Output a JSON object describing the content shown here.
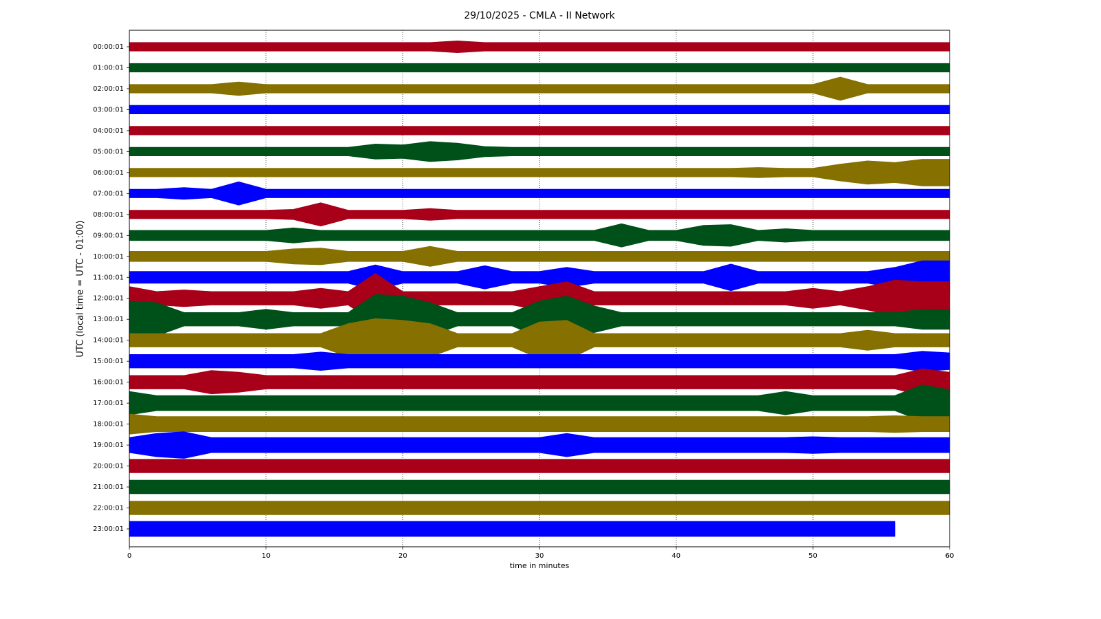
{
  "chart_data": {
    "type": "helicorder",
    "title": "29/10/2025 - CMLA - II Network",
    "xlabel": "time in minutes",
    "ylabel": "UTC (local time = UTC - 01:00)",
    "xlim": [
      0,
      60
    ],
    "xticks": [
      0,
      10,
      20,
      30,
      40,
      50,
      60
    ],
    "grid": true,
    "x": [
      0,
      2,
      4,
      6,
      8,
      10,
      12,
      14,
      16,
      18,
      20,
      22,
      24,
      26,
      28,
      30,
      32,
      34,
      36,
      38,
      40,
      42,
      44,
      46,
      48,
      50,
      52,
      54,
      56,
      58,
      60
    ],
    "series": [
      {
        "name": "00:00:01",
        "color": "#a80018",
        "values": [
          5,
          5,
          5,
          5,
          5,
          5,
          5,
          5,
          5,
          5,
          5,
          5,
          7,
          5,
          5,
          5,
          5,
          5,
          5,
          5,
          5,
          5,
          5,
          5,
          5,
          5,
          5,
          5,
          5,
          5,
          5
        ]
      },
      {
        "name": "01:00:01",
        "color": "#00501a",
        "values": [
          5,
          5,
          5,
          5,
          5,
          5,
          5,
          5,
          5,
          5,
          5,
          5,
          5,
          5,
          5,
          5,
          5,
          5,
          5,
          5,
          5,
          5,
          5,
          5,
          5,
          5,
          5,
          5,
          5,
          5,
          5
        ]
      },
      {
        "name": "02:00:01",
        "color": "#857000",
        "values": [
          5,
          5,
          5,
          5,
          8,
          5,
          5,
          5,
          5,
          5,
          5,
          5,
          5,
          5,
          5,
          5,
          5,
          5,
          5,
          5,
          5,
          5,
          5,
          5,
          5,
          5,
          14,
          5,
          5,
          5,
          5
        ]
      },
      {
        "name": "03:00:01",
        "color": "#0000ff",
        "values": [
          5,
          5,
          5,
          5,
          5,
          5,
          5,
          5,
          5,
          5,
          5,
          5,
          5,
          5,
          5,
          5,
          5,
          5,
          5,
          5,
          5,
          5,
          5,
          5,
          5,
          5,
          5,
          5,
          5,
          5,
          5
        ]
      },
      {
        "name": "04:00:01",
        "color": "#a80018",
        "values": [
          5,
          5,
          5,
          5,
          5,
          5,
          5,
          5,
          5,
          5,
          5,
          5,
          5,
          5,
          5,
          5,
          5,
          5,
          5,
          5,
          5,
          5,
          5,
          5,
          5,
          5,
          5,
          5,
          5,
          5,
          5
        ]
      },
      {
        "name": "05:00:01",
        "color": "#00501a",
        "values": [
          5,
          5,
          5,
          5,
          5,
          5,
          5,
          5,
          5,
          9,
          8,
          12,
          10,
          6,
          5,
          5,
          5,
          5,
          5,
          5,
          5,
          5,
          5,
          5,
          5,
          5,
          5,
          5,
          5,
          5,
          5
        ]
      },
      {
        "name": "06:00:01",
        "color": "#857000",
        "values": [
          5,
          5,
          5,
          5,
          5,
          5,
          5,
          5,
          5,
          5,
          5,
          5,
          5,
          5,
          5,
          5,
          5,
          5,
          5,
          5,
          5,
          5,
          5,
          6,
          5,
          5,
          10,
          14,
          12,
          16,
          16
        ]
      },
      {
        "name": "07:00:01",
        "color": "#0000ff",
        "values": [
          5,
          5,
          7,
          5,
          14,
          5,
          5,
          5,
          5,
          5,
          5,
          5,
          5,
          5,
          5,
          5,
          5,
          5,
          5,
          5,
          5,
          5,
          5,
          5,
          5,
          5,
          5,
          5,
          5,
          5,
          5
        ]
      },
      {
        "name": "08:00:01",
        "color": "#a80018",
        "values": [
          5,
          5,
          5,
          5,
          5,
          5,
          6,
          14,
          5,
          5,
          5,
          7,
          5,
          5,
          5,
          5,
          5,
          5,
          5,
          5,
          5,
          5,
          5,
          5,
          5,
          5,
          5,
          5,
          5,
          5,
          5
        ]
      },
      {
        "name": "09:00:01",
        "color": "#00501a",
        "values": [
          6,
          6,
          6,
          6,
          6,
          6,
          9,
          6,
          6,
          6,
          6,
          6,
          6,
          6,
          6,
          6,
          6,
          6,
          14,
          6,
          6,
          12,
          13,
          6,
          8,
          6,
          6,
          6,
          6,
          6,
          6
        ]
      },
      {
        "name": "10:00:01",
        "color": "#857000",
        "values": [
          6,
          6,
          6,
          6,
          6,
          6,
          9,
          10,
          6,
          6,
          6,
          12,
          6,
          6,
          6,
          6,
          6,
          6,
          6,
          6,
          6,
          6,
          6,
          6,
          6,
          6,
          6,
          6,
          6,
          6,
          6
        ]
      },
      {
        "name": "11:00:01",
        "color": "#0000ff",
        "values": [
          7,
          7,
          7,
          7,
          7,
          7,
          7,
          7,
          7,
          15,
          7,
          7,
          7,
          14,
          7,
          7,
          12,
          7,
          7,
          7,
          7,
          7,
          16,
          7,
          7,
          7,
          7,
          7,
          12,
          20,
          20
        ]
      },
      {
        "name": "12:00:01",
        "color": "#a80018",
        "values": [
          14,
          8,
          10,
          8,
          8,
          8,
          8,
          12,
          8,
          30,
          8,
          8,
          8,
          8,
          8,
          14,
          20,
          8,
          8,
          8,
          8,
          8,
          8,
          8,
          8,
          12,
          8,
          14,
          22,
          20,
          20
        ]
      },
      {
        "name": "13:00:01",
        "color": "#00501a",
        "values": [
          22,
          20,
          8,
          8,
          8,
          12,
          8,
          8,
          8,
          30,
          28,
          20,
          8,
          8,
          8,
          22,
          28,
          16,
          8,
          8,
          8,
          8,
          8,
          8,
          8,
          8,
          8,
          8,
          8,
          12,
          12
        ]
      },
      {
        "name": "14:00:01",
        "color": "#857000",
        "values": [
          8,
          8,
          8,
          8,
          8,
          8,
          8,
          8,
          20,
          26,
          24,
          20,
          8,
          8,
          8,
          22,
          24,
          8,
          8,
          8,
          8,
          8,
          8,
          8,
          8,
          8,
          8,
          12,
          8,
          8,
          8
        ]
      },
      {
        "name": "15:00:01",
        "color": "#0000ff",
        "values": [
          8,
          8,
          8,
          8,
          8,
          8,
          8,
          11,
          8,
          8,
          8,
          8,
          8,
          8,
          8,
          8,
          8,
          8,
          8,
          8,
          8,
          8,
          8,
          8,
          8,
          8,
          8,
          8,
          8,
          12,
          10
        ]
      },
      {
        "name": "16:00:01",
        "color": "#a80018",
        "values": [
          8,
          8,
          8,
          14,
          12,
          8,
          8,
          8,
          8,
          8,
          8,
          8,
          8,
          8,
          8,
          8,
          8,
          8,
          8,
          8,
          8,
          8,
          8,
          8,
          8,
          8,
          8,
          8,
          8,
          16,
          12
        ]
      },
      {
        "name": "17:00:01",
        "color": "#00501a",
        "values": [
          14,
          9,
          9,
          9,
          9,
          9,
          9,
          9,
          9,
          9,
          9,
          9,
          9,
          9,
          9,
          9,
          9,
          9,
          9,
          9,
          9,
          9,
          9,
          9,
          14,
          9,
          9,
          9,
          9,
          22,
          16
        ]
      },
      {
        "name": "18:00:01",
        "color": "#857000",
        "values": [
          12,
          9,
          9,
          9,
          9,
          9,
          9,
          9,
          9,
          9,
          9,
          9,
          9,
          9,
          9,
          9,
          9,
          9,
          9,
          9,
          9,
          9,
          9,
          9,
          9,
          9,
          9,
          9,
          10,
          9,
          9
        ]
      },
      {
        "name": "19:00:01",
        "color": "#0000ff",
        "values": [
          9,
          14,
          16,
          9,
          9,
          9,
          9,
          9,
          9,
          9,
          9,
          9,
          9,
          9,
          9,
          9,
          14,
          9,
          9,
          9,
          9,
          9,
          9,
          9,
          9,
          10,
          9,
          9,
          9,
          9,
          9
        ]
      },
      {
        "name": "20:00:01",
        "color": "#a80018",
        "values": [
          8,
          8,
          8,
          8,
          8,
          8,
          8,
          8,
          8,
          8,
          8,
          8,
          8,
          8,
          8,
          8,
          8,
          8,
          8,
          8,
          8,
          8,
          8,
          8,
          8,
          8,
          8,
          8,
          8,
          8,
          8
        ]
      },
      {
        "name": "21:00:01",
        "color": "#00501a",
        "values": [
          8,
          8,
          8,
          8,
          8,
          8,
          8,
          8,
          8,
          8,
          8,
          8,
          8,
          8,
          8,
          8,
          8,
          8,
          8,
          8,
          8,
          8,
          8,
          8,
          8,
          8,
          8,
          8,
          8,
          8,
          8
        ]
      },
      {
        "name": "22:00:01",
        "color": "#857000",
        "values": [
          8,
          8,
          8,
          8,
          8,
          8,
          8,
          8,
          8,
          8,
          8,
          8,
          8,
          8,
          8,
          8,
          8,
          8,
          8,
          8,
          8,
          8,
          8,
          8,
          8,
          8,
          8,
          8,
          8,
          8,
          8
        ]
      },
      {
        "name": "23:00:01",
        "color": "#0000ff",
        "values": [
          9,
          9,
          9,
          9,
          9,
          9,
          9,
          9,
          9,
          9,
          9,
          9,
          9,
          9,
          9,
          9,
          9,
          9,
          9,
          9,
          9,
          9,
          9,
          9,
          9,
          9,
          9,
          9,
          9,
          null,
          null
        ]
      }
    ]
  }
}
